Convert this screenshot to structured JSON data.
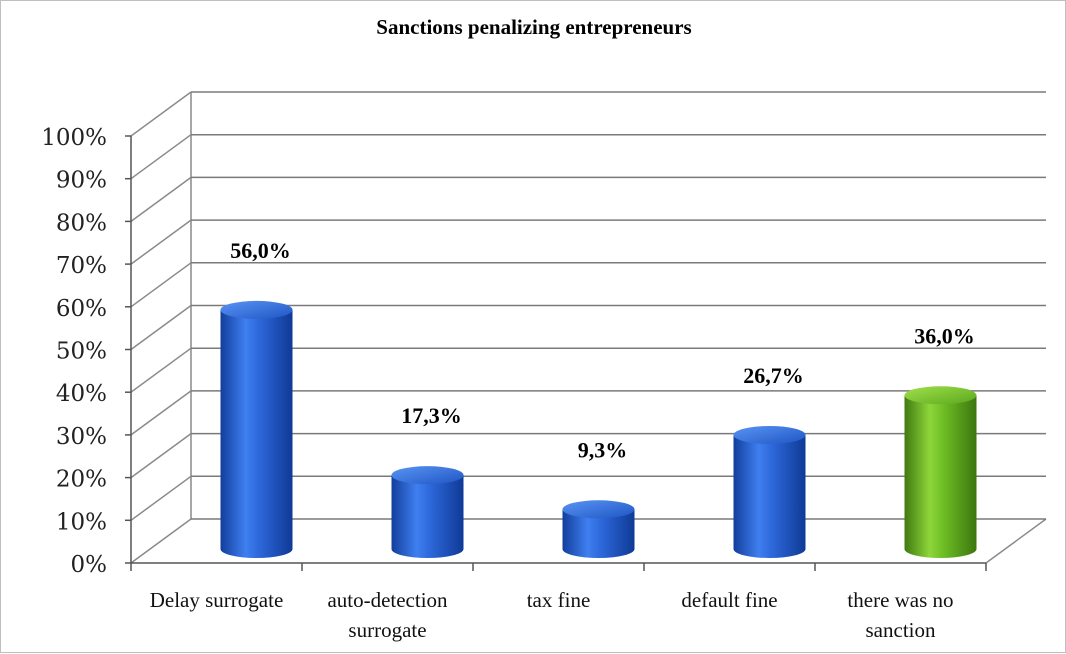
{
  "chart_data": {
    "type": "bar",
    "title": "Sanctions penalizing entrepreneurs",
    "categories": [
      "Delay surrogate",
      "auto-detection surrogate",
      "tax fine",
      "default fine",
      "there was no sanction"
    ],
    "category_lines": [
      [
        "Delay surrogate"
      ],
      [
        "auto-detection",
        "surrogate"
      ],
      [
        "tax fine"
      ],
      [
        "default fine"
      ],
      [
        "there was no",
        "sanction"
      ]
    ],
    "values": [
      56.0,
      17.3,
      9.3,
      26.7,
      36.0
    ],
    "data_labels": [
      "56,0%",
      "17,3%",
      "9,3%",
      "26,7%",
      "36,0%"
    ],
    "bar_colors": [
      "#2a63d8",
      "#2a63d8",
      "#2a63d8",
      "#2a63d8",
      "#6ab820"
    ],
    "y_ticks": [
      "0%",
      "10%",
      "20%",
      "30%",
      "40%",
      "50%",
      "60%",
      "70%",
      "80%",
      "90%",
      "100%"
    ],
    "ylim": [
      0,
      100
    ],
    "grid": true,
    "legend": "none",
    "style": "3d-cylinder"
  }
}
